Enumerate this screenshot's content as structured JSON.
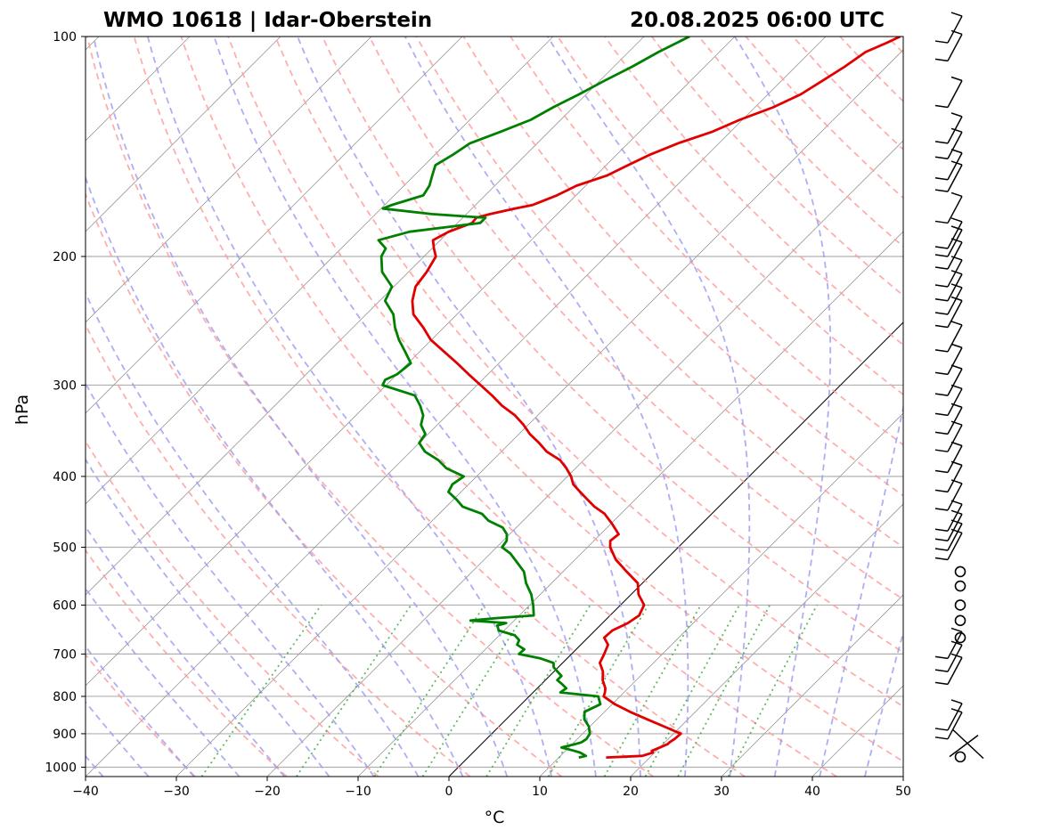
{
  "chart_data": {
    "type": "line",
    "title_left": "WMO 10618 | Idar-Oberstein",
    "title_right": "20.08.2025 06:00 UTC",
    "xlabel": "°C",
    "ylabel": "hPa",
    "xlim": [
      -40,
      50
    ],
    "ylim": [
      1030,
      100
    ],
    "y_scale": "log",
    "skew": true,
    "grid": true,
    "x_ticks": [
      -40,
      -30,
      -20,
      -10,
      0,
      10,
      20,
      30,
      40,
      50
    ],
    "x_tick_labels": [
      "−40",
      "−30",
      "−20",
      "−10",
      "0",
      "10",
      "20",
      "30",
      "40",
      "50"
    ],
    "y_ticks": [
      1000,
      900,
      800,
      700,
      600,
      500,
      400,
      300,
      200,
      100
    ],
    "y_tick_labels": [
      "1000",
      "900",
      "800",
      "700",
      "600",
      "500",
      "400",
      "300",
      "200",
      "100"
    ],
    "series": [
      {
        "color": "#e00000",
        "pressure": [
          970,
          965,
          955,
          950,
          940,
          930,
          925,
          915,
          900,
          880,
          860,
          840,
          820,
          800,
          790,
          780,
          760,
          740,
          720,
          700,
          680,
          665,
          650,
          635,
          620,
          600,
          580,
          560,
          540,
          520,
          500,
          490,
          480,
          465,
          450,
          440,
          430,
          420,
          410,
          400,
          390,
          380,
          370,
          360,
          350,
          340,
          330,
          320,
          310,
          300,
          290,
          280,
          270,
          260,
          250,
          240,
          230,
          220,
          210,
          200,
          195,
          190,
          185,
          180,
          177,
          175,
          172,
          170,
          165,
          160,
          155,
          150,
          145,
          140,
          135,
          130,
          125,
          120,
          115,
          110,
          105,
          102,
          100
        ],
        "t": [
          15.2,
          19.0,
          19.8,
          19.5,
          20.0,
          20.5,
          20.5,
          20.7,
          20.8,
          18.2,
          15.5,
          12.8,
          10.3,
          8.2,
          7.9,
          7.5,
          6.3,
          5.4,
          4.1,
          3.6,
          3.0,
          1.8,
          1.9,
          2.8,
          3.2,
          2.6,
          0.8,
          -0.5,
          -3.0,
          -5.5,
          -7.5,
          -8.2,
          -8.0,
          -9.8,
          -11.8,
          -13.7,
          -15.3,
          -16.9,
          -18.5,
          -19.6,
          -21.0,
          -22.6,
          -25.0,
          -26.8,
          -28.8,
          -30.5,
          -32.5,
          -35.0,
          -37.2,
          -39.6,
          -42.1,
          -44.6,
          -47.3,
          -50.1,
          -52.3,
          -54.8,
          -56.4,
          -57.6,
          -58.0,
          -58.7,
          -59.8,
          -60.8,
          -60.0,
          -58.4,
          -58.5,
          -57.4,
          -55.3,
          -53.7,
          -52.1,
          -51.0,
          -48.8,
          -47.6,
          -46.3,
          -44.5,
          -42.0,
          -40.3,
          -38.0,
          -36.4,
          -35.5,
          -34.6,
          -33.9,
          -32.6,
          -31.8
        ]
      },
      {
        "color": "#008000",
        "pressure": [
          970,
          965,
          955,
          950,
          940,
          930,
          925,
          915,
          900,
          880,
          860,
          840,
          820,
          800,
          790,
          780,
          770,
          760,
          750,
          740,
          730,
          720,
          710,
          700,
          690,
          680,
          670,
          660,
          650,
          640,
          635,
          630,
          625,
          620,
          610,
          600,
          580,
          560,
          540,
          520,
          510,
          500,
          490,
          480,
          470,
          460,
          450,
          440,
          430,
          420,
          410,
          400,
          390,
          380,
          370,
          360,
          350,
          340,
          330,
          320,
          310,
          300,
          295,
          290,
          280,
          270,
          260,
          250,
          240,
          230,
          220,
          210,
          200,
          195,
          190,
          185,
          180,
          177,
          175,
          172,
          170,
          165,
          160,
          155,
          150,
          145,
          140,
          135,
          130,
          125,
          120,
          115,
          110,
          105,
          102,
          100
        ],
        "t": [
          12.2,
          12.8,
          11.8,
          11.0,
          9.2,
          10.3,
          10.8,
          11.0,
          10.8,
          9.9,
          8.6,
          7.8,
          8.7,
          7.6,
          3.0,
          3.2,
          2.3,
          1.3,
          1.3,
          0.4,
          -0.5,
          -1.0,
          -2.9,
          -5.8,
          -5.7,
          -7.0,
          -7.3,
          -8.3,
          -10.6,
          -11.3,
          -10.6,
          -14.8,
          -12.1,
          -8.4,
          -9.0,
          -9.6,
          -11.0,
          -12.8,
          -14.3,
          -16.6,
          -17.8,
          -19.4,
          -19.6,
          -20.3,
          -21.5,
          -23.8,
          -25.3,
          -28.2,
          -29.7,
          -31.4,
          -31.8,
          -31.4,
          -34.2,
          -36.0,
          -38.4,
          -40.0,
          -40.3,
          -41.8,
          -42.6,
          -44.0,
          -45.7,
          -50.4,
          -50.7,
          -50.0,
          -49.7,
          -51.6,
          -53.6,
          -55.4,
          -57.0,
          -59.4,
          -60.2,
          -62.9,
          -64.7,
          -65.1,
          -66.8,
          -64.3,
          -57.5,
          -57.5,
          -63.8,
          -69.8,
          -69.2,
          -66.8,
          -67.2,
          -68.0,
          -68.8,
          -68.0,
          -67.4,
          -65.3,
          -63.3,
          -62.2,
          -60.8,
          -59.5,
          -58.0,
          -56.7,
          -55.7,
          -55.0
        ]
      }
    ],
    "wind_barbs": [
      {
        "p": 968,
        "calm": true
      },
      {
        "p": 930,
        "cross": true
      },
      {
        "p": 915
      },
      {
        "p": 890
      },
      {
        "p": 770
      },
      {
        "p": 740
      },
      {
        "p": 710
      },
      {
        "p": 665,
        "calm": true
      },
      {
        "p": 630,
        "calm": true
      },
      {
        "p": 600,
        "calm": true
      },
      {
        "p": 565,
        "calm": true
      },
      {
        "p": 540,
        "calm": true
      },
      {
        "p": 520
      },
      {
        "p": 505
      },
      {
        "p": 490
      },
      {
        "p": 475
      },
      {
        "p": 445
      },
      {
        "p": 420
      },
      {
        "p": 395
      },
      {
        "p": 370
      },
      {
        "p": 350
      },
      {
        "p": 330
      },
      {
        "p": 310
      },
      {
        "p": 290
      },
      {
        "p": 270
      },
      {
        "p": 250
      },
      {
        "p": 240
      },
      {
        "p": 230
      },
      {
        "p": 220
      },
      {
        "p": 208
      },
      {
        "p": 200
      },
      {
        "p": 195
      },
      {
        "p": 180
      },
      {
        "p": 163
      },
      {
        "p": 157
      },
      {
        "p": 147
      },
      {
        "p": 140
      },
      {
        "p": 125
      },
      {
        "p": 108
      },
      {
        "p": 102
      }
    ]
  }
}
